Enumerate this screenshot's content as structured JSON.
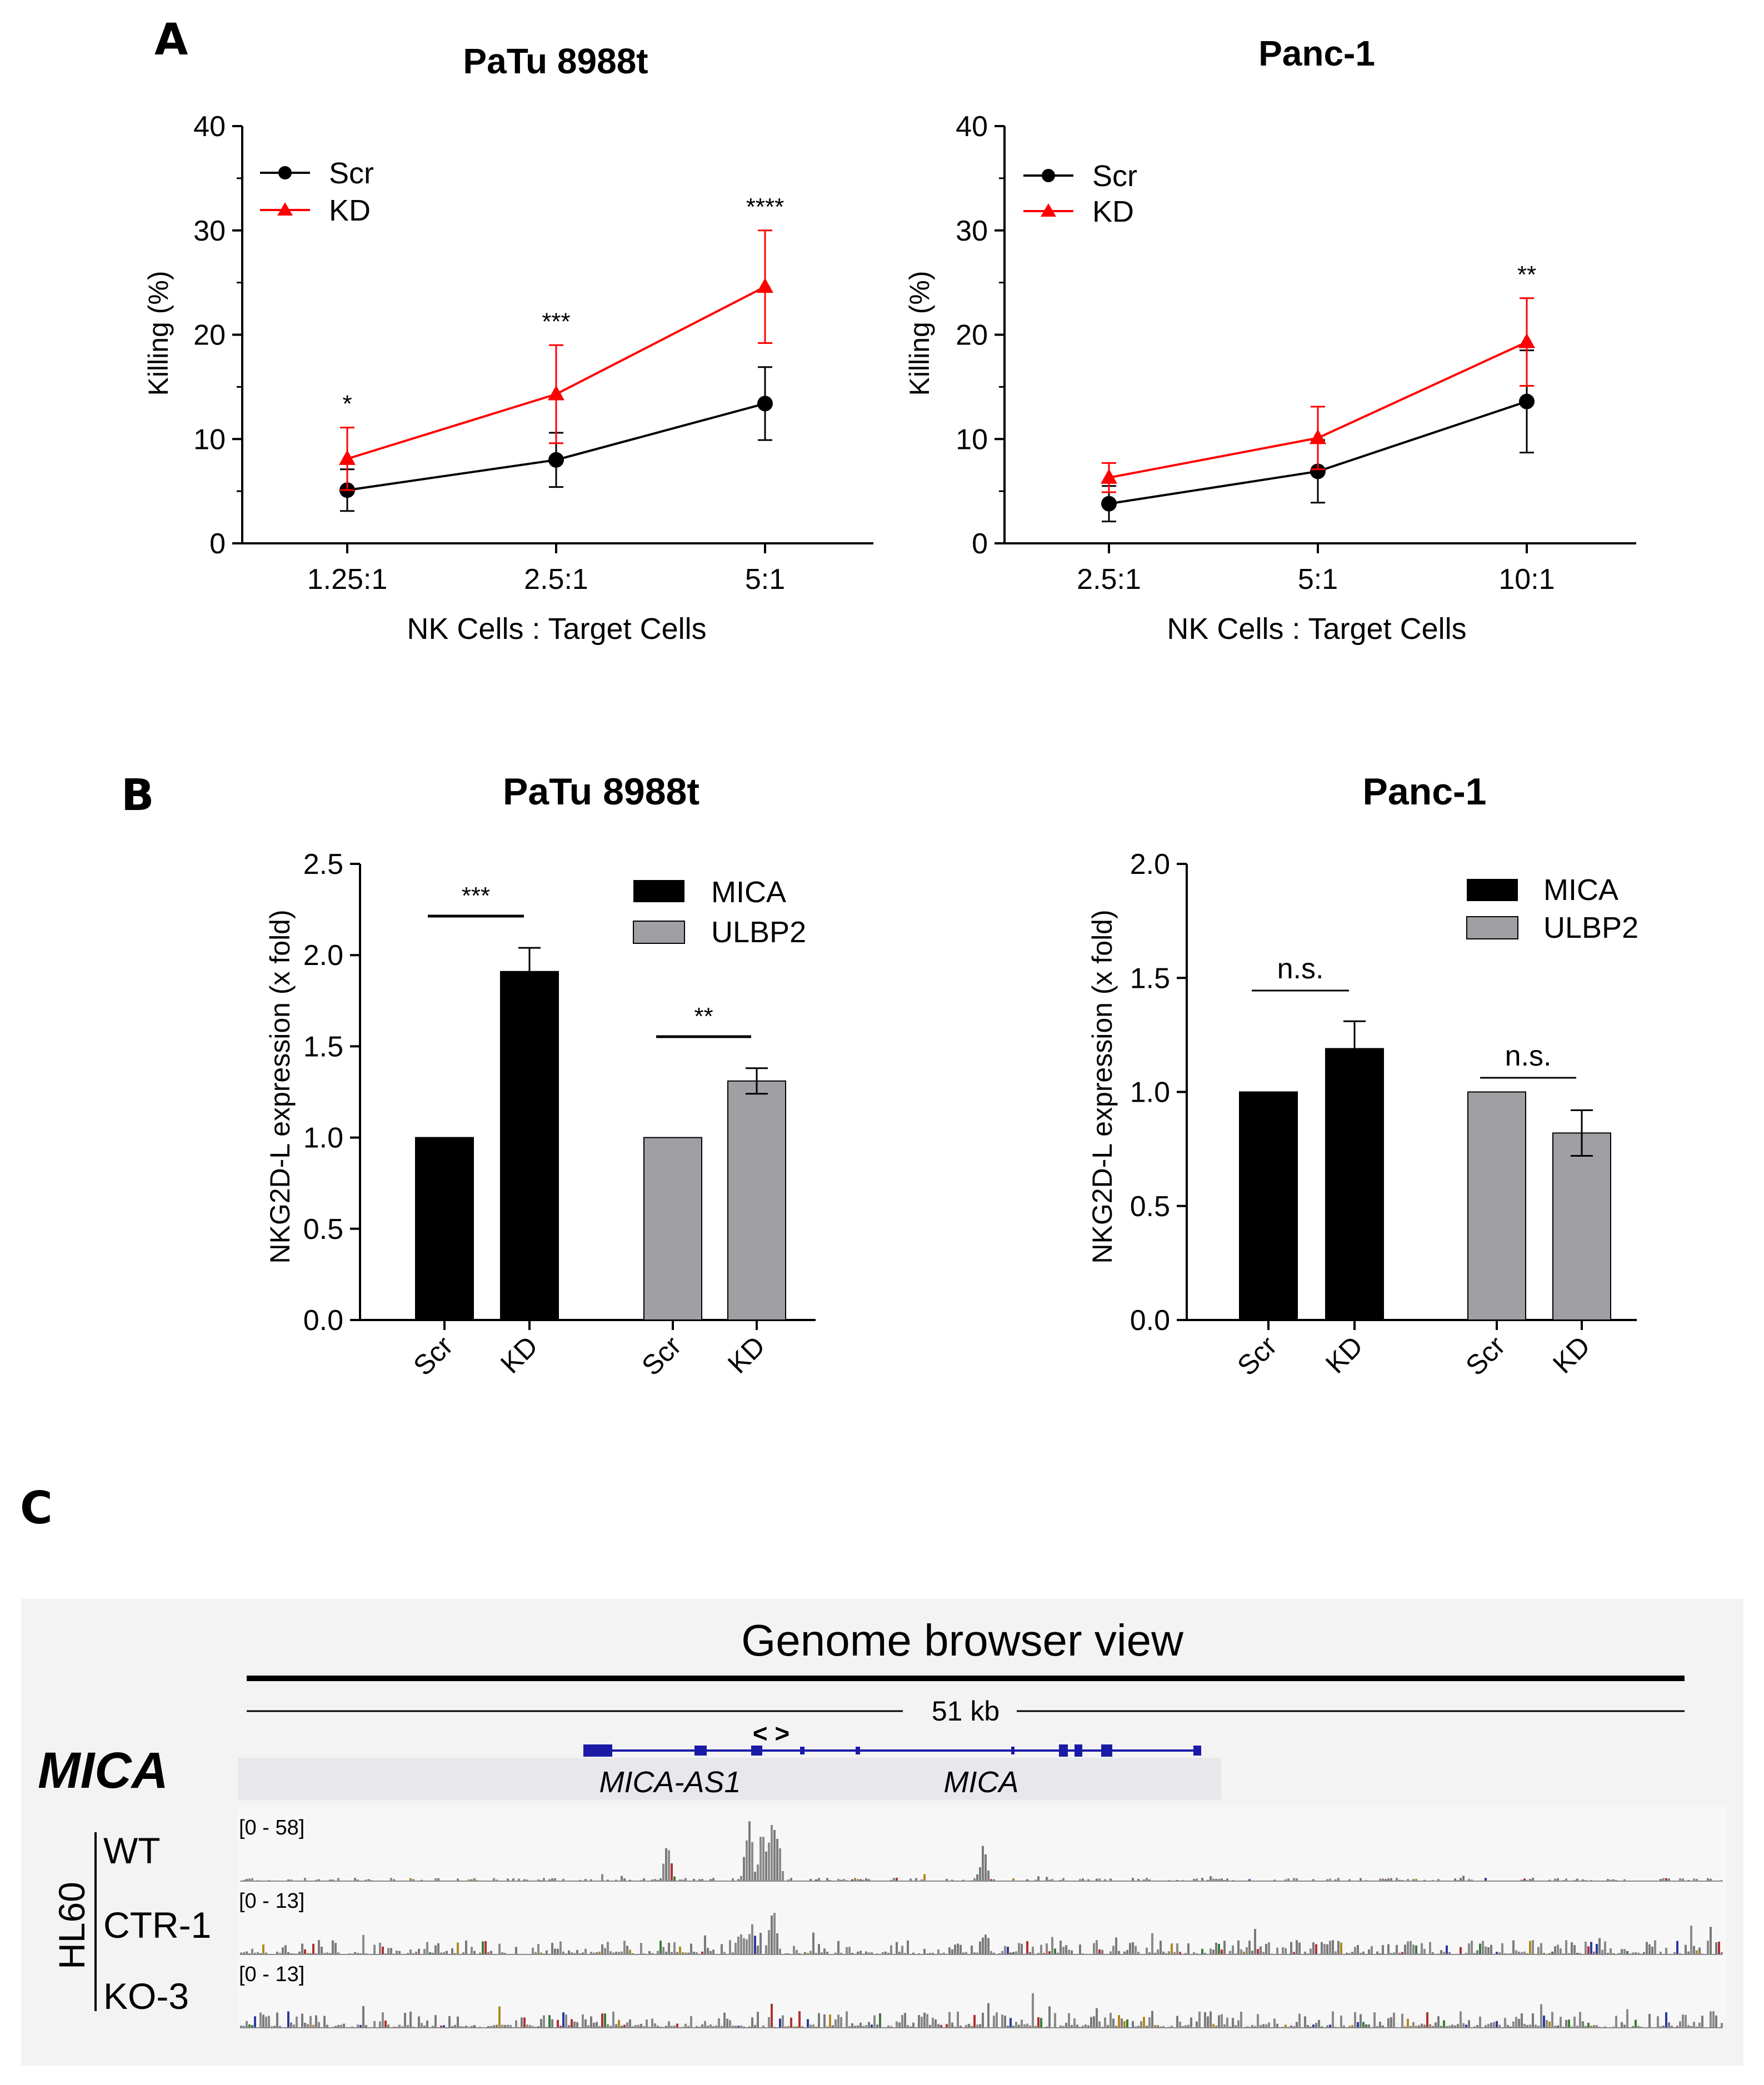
{
  "panels": {
    "a": {
      "letter": "A",
      "charts": [
        {
          "title": "PaTu 8988t",
          "xlabel": "NK Cells : Target Cells",
          "ylabel": "Killing (%)",
          "ticks": [
            "0",
            "10",
            "20",
            "30",
            "40"
          ],
          "legend": [
            "Scr",
            "KD"
          ],
          "sig": [
            "*",
            "***",
            "****"
          ]
        },
        {
          "title": "Panc-1",
          "xlabel": "NK Cells : Target Cells",
          "ylabel": "Killing (%)",
          "ticks": [
            "0",
            "10",
            "20",
            "30",
            "40"
          ],
          "legend": [
            "Scr",
            "KD"
          ],
          "sig": [
            "**"
          ]
        }
      ]
    },
    "b": {
      "letter": "B",
      "charts": [
        {
          "title": "PaTu 8988t",
          "ylabel": "NKG2D-L expression (x fold)",
          "ticks": [
            "0.0",
            "0.5",
            "1.0",
            "1.5",
            "2.0",
            "2.5"
          ],
          "legend": [
            "MICA",
            "ULBP2"
          ],
          "sig": [
            "***",
            "**"
          ]
        },
        {
          "title": "Panc-1",
          "ylabel": "NKG2D-L expression (x fold)",
          "ticks": [
            "0.0",
            "0.5",
            "1.0",
            "1.5",
            "2.0"
          ],
          "legend": [
            "MICA",
            "ULBP2"
          ],
          "sig": [
            "n.s.",
            "n.s."
          ]
        }
      ]
    },
    "c": {
      "letter": "C",
      "title": "Genome browser view",
      "scale": "51 kb",
      "direction": "< >",
      "locus": "MICA",
      "genes": [
        "MICA-AS1",
        "MICA"
      ],
      "cell_line": "HL60",
      "tracks": [
        {
          "name": "WT",
          "range": "[0 - 58]"
        },
        {
          "name": "CTR-1",
          "range": "[0 - 13]"
        },
        {
          "name": "KO-3",
          "range": "[0 - 13]"
        }
      ]
    }
  },
  "colors": {
    "scr": "#000000",
    "kd": "#ff0000",
    "mica_bar": "#000000",
    "ulbp2_bar": "#a0a0a4",
    "gene_track": "#1a1aa6",
    "browser_bg": "#f3f3f3"
  },
  "chart_data": [
    {
      "type": "line",
      "title": "PaTu 8988t",
      "xlabel": "NK Cells : Target Cells",
      "ylabel": "Killing (%)",
      "ylim": [
        0,
        40
      ],
      "categories": [
        "1.25:1",
        "2.5:1",
        "5:1"
      ],
      "series": [
        {
          "name": "Scr",
          "values": [
            5.1,
            8.0,
            13.4
          ],
          "err": [
            2.0,
            2.6,
            3.5
          ]
        },
        {
          "name": "KD",
          "values": [
            8.1,
            14.3,
            24.6
          ],
          "err": [
            3.0,
            4.7,
            5.4
          ]
        }
      ],
      "significance": [
        "*",
        "***",
        "****"
      ],
      "legend": "top-left",
      "grid": false
    },
    {
      "type": "line",
      "title": "Panc-1",
      "xlabel": "NK Cells : Target Cells",
      "ylabel": "Killing (%)",
      "ylim": [
        0,
        40
      ],
      "categories": [
        "2.5:1",
        "5:1",
        "10:1"
      ],
      "series": [
        {
          "name": "Scr",
          "values": [
            3.8,
            6.9,
            13.6
          ],
          "err": [
            1.7,
            3.0,
            4.9
          ]
        },
        {
          "name": "KD",
          "values": [
            6.3,
            10.1,
            19.3
          ],
          "err": [
            1.4,
            3.0,
            4.2
          ]
        }
      ],
      "significance": [
        "",
        "",
        "**"
      ],
      "legend": "top-left",
      "grid": false
    },
    {
      "type": "bar",
      "title": "PaTu 8988t",
      "ylabel": "NKG2D-L expression (x fold)",
      "ylim": [
        0,
        2.5
      ],
      "categories": [
        "Scr",
        "KD",
        "Scr",
        "KD"
      ],
      "groups": [
        "MICA",
        "MICA",
        "ULBP2",
        "ULBP2"
      ],
      "values": [
        1.0,
        1.91,
        1.0,
        1.31
      ],
      "err": [
        0,
        0.13,
        0,
        0.07
      ],
      "significance": [
        {
          "pair": [
            0,
            1
          ],
          "label": "***"
        },
        {
          "pair": [
            2,
            3
          ],
          "label": "**"
        }
      ],
      "legend": "top-right",
      "grid": false
    },
    {
      "type": "bar",
      "title": "Panc-1",
      "ylabel": "NKG2D-L expression (x fold)",
      "ylim": [
        0,
        2.0
      ],
      "categories": [
        "Scr",
        "KD",
        "Scr",
        "KD"
      ],
      "groups": [
        "MICA",
        "MICA",
        "ULBP2",
        "ULBP2"
      ],
      "values": [
        1.0,
        1.19,
        1.0,
        0.82
      ],
      "err": [
        0,
        0.12,
        0,
        0.1
      ],
      "significance": [
        {
          "pair": [
            0,
            1
          ],
          "label": "n.s."
        },
        {
          "pair": [
            2,
            3
          ],
          "label": "n.s."
        }
      ],
      "legend": "top-right",
      "grid": false
    }
  ]
}
